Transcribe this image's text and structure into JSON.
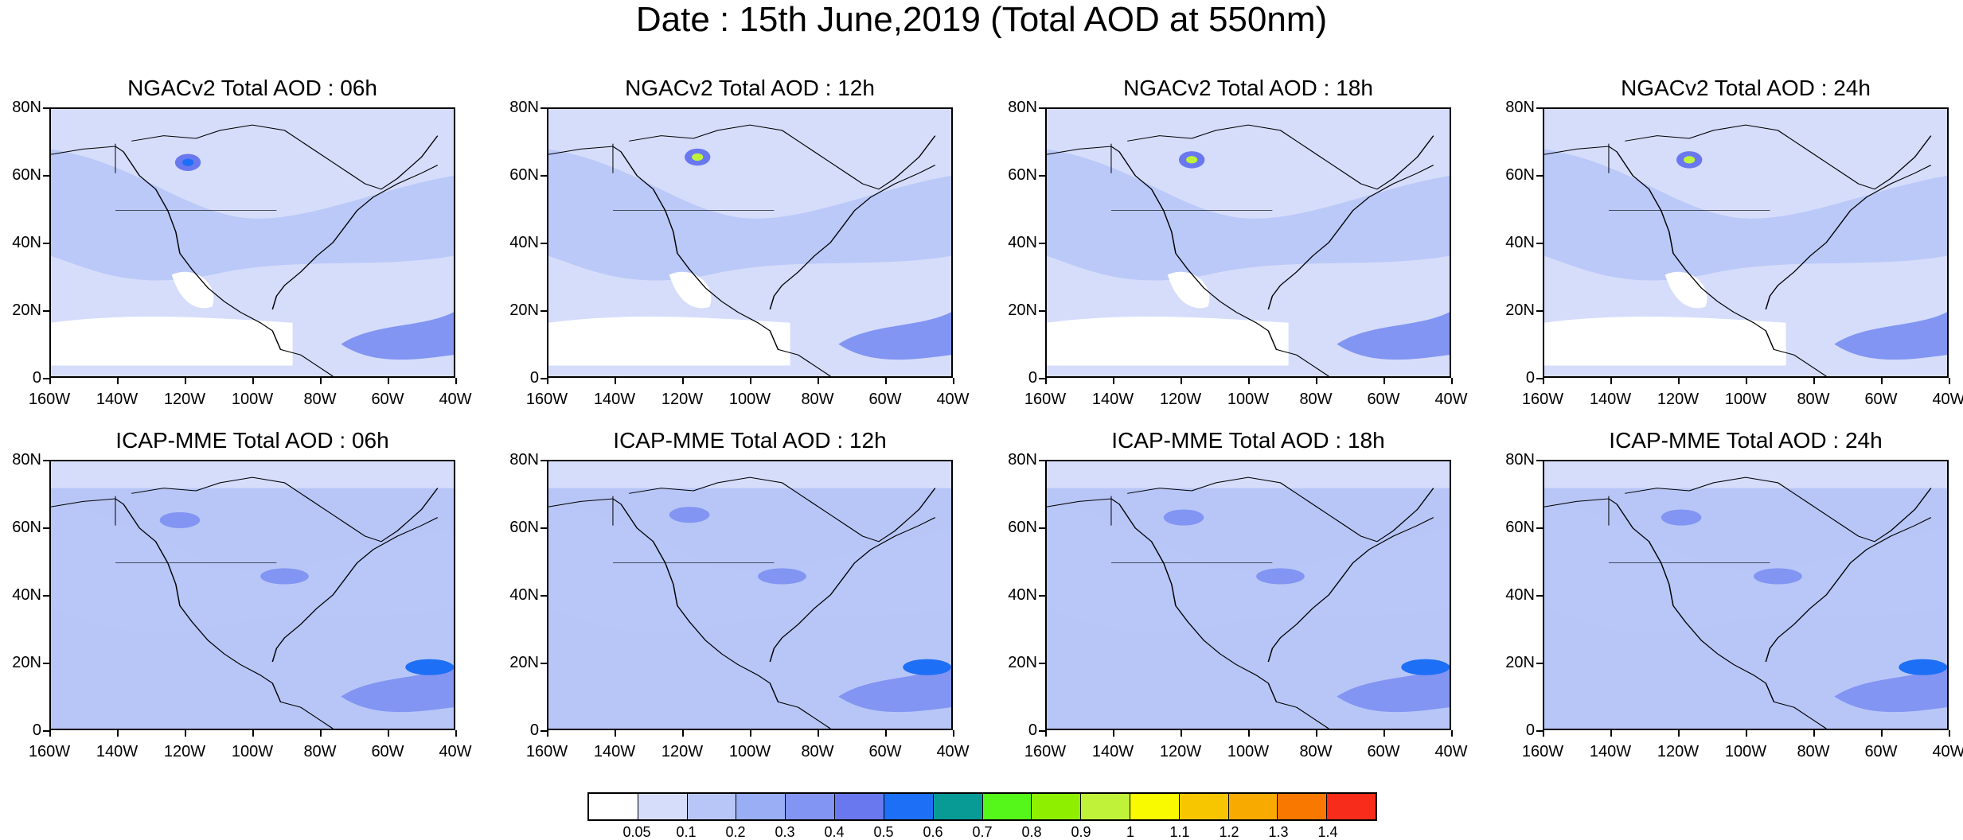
{
  "title": "Date : 15th June,2019 (Total AOD at 550nm)",
  "panels": [
    {
      "title": "NGACv2 Total AOD : 06h"
    },
    {
      "title": "NGACv2 Total AOD : 12h"
    },
    {
      "title": "NGACv2 Total AOD : 18h"
    },
    {
      "title": "NGACv2 Total AOD : 24h"
    },
    {
      "title": "ICAP-MME Total AOD : 06h"
    },
    {
      "title": "ICAP-MME Total AOD : 12h"
    },
    {
      "title": "ICAP-MME Total AOD : 18h"
    },
    {
      "title": "ICAP-MME Total AOD : 24h"
    }
  ],
  "lat_labels": [
    "80N",
    "60N",
    "40N",
    "20N",
    "0"
  ],
  "lon_labels": [
    "160W",
    "140W",
    "120W",
    "100W",
    "80W",
    "60W",
    "40W"
  ],
  "colorbar": {
    "colors": [
      "#ffffff",
      "#d6ddfb",
      "#b8c6f7",
      "#99aef5",
      "#8295f2",
      "#6a78f0",
      "#1d6ff5",
      "#089b96",
      "#55f71a",
      "#8ef000",
      "#c0f23a",
      "#f9f900",
      "#f8c600",
      "#f8aa00",
      "#f87800",
      "#f82c1a"
    ],
    "labels": [
      "0.05",
      "0.1",
      "0.2",
      "0.3",
      "0.4",
      "0.5",
      "0.6",
      "0.7",
      "0.8",
      "0.9",
      "1",
      "1.1",
      "1.2",
      "1.3",
      "1.4"
    ]
  }
}
